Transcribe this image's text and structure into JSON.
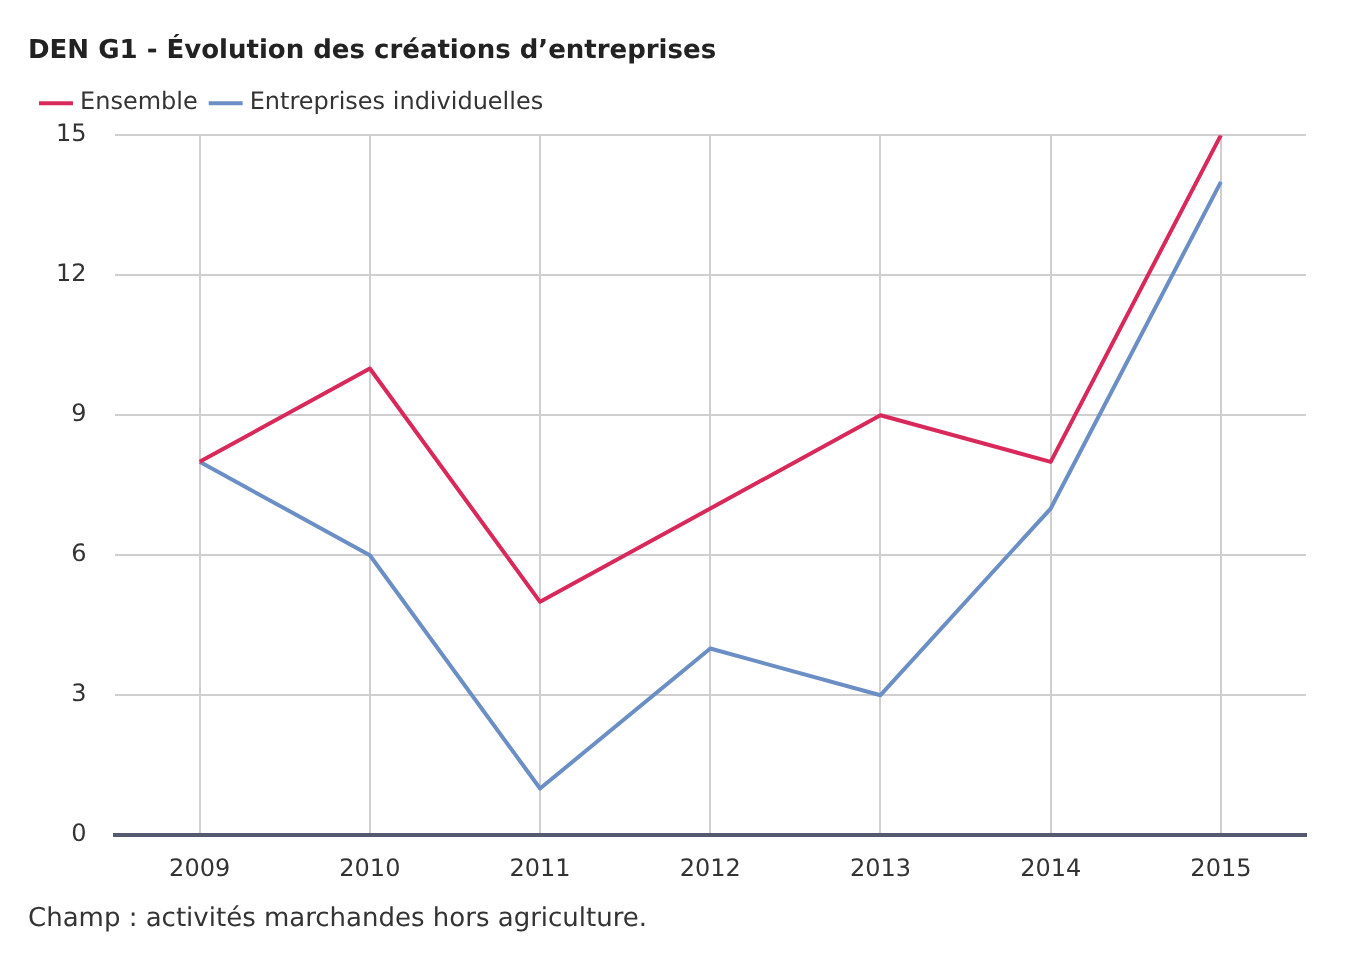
{
  "chart_data": {
    "type": "line",
    "title": "DEN G1 - Évolution des créations d’entreprises",
    "categories": [
      "2009",
      "2010",
      "2011",
      "2012",
      "2013",
      "2014",
      "2015"
    ],
    "series": [
      {
        "name": "Ensemble",
        "color": "#d9285a",
        "values": [
          8,
          10,
          5,
          7,
          9,
          8,
          15
        ]
      },
      {
        "name": "Entreprises individuelles",
        "color": "#6b8fc4",
        "values": [
          8,
          6,
          1,
          4,
          3,
          7,
          14
        ]
      }
    ],
    "ylim": [
      0,
      15
    ],
    "yticks": [
      0,
      3,
      6,
      9,
      12,
      15
    ],
    "grid": true,
    "legend": "top left",
    "annotations": [
      "Champ : activités marchandes hors agriculture."
    ]
  }
}
